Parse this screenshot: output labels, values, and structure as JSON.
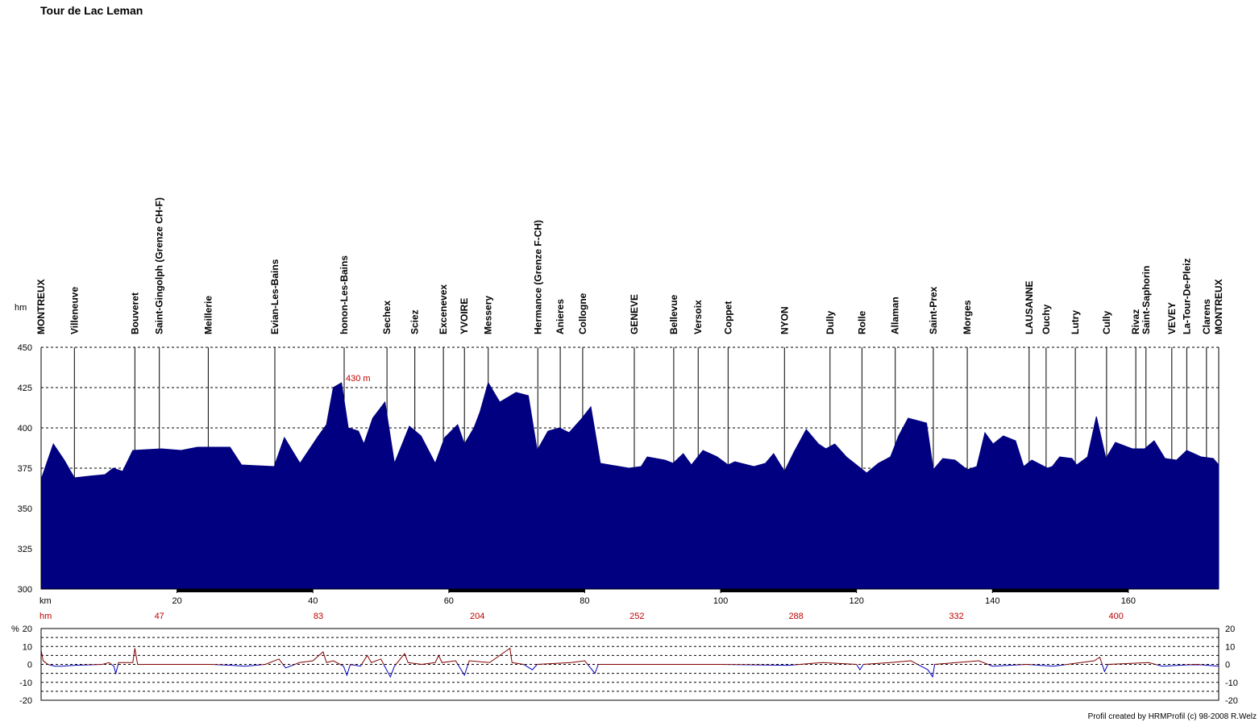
{
  "chart_data": [
    {
      "type": "area",
      "title": "Tour de Lac Leman",
      "ylabel": "hm",
      "xlabel": "km",
      "color": "#000080",
      "x": [
        0,
        1.8,
        3.4,
        4.9,
        7,
        9.4,
        10.6,
        12,
        13.5,
        17.7,
        20.6,
        23,
        27.8,
        29.5,
        34.3,
        35.8,
        38.1,
        40.8,
        42,
        43,
        44.2,
        45.2,
        46.7,
        47.5,
        48.8,
        50.6,
        52,
        54.2,
        55.9,
        58,
        59.4,
        61.3,
        62.3,
        63.7,
        64.6,
        65.8,
        67.5,
        69.9,
        71.7,
        73,
        74.6,
        76.3,
        77.7,
        79.4,
        80.9,
        82.3,
        86.5,
        88.3,
        89.2,
        91.8,
        93,
        94.5,
        95.7,
        97.4,
        99.5,
        101.1,
        102.1,
        104.9,
        106.6,
        107.8,
        109.4,
        110.8,
        112.6,
        114.4,
        115.5,
        116.8,
        118.5,
        120.3,
        121.5,
        123.2,
        125,
        126.2,
        127.6,
        130.3,
        131.3,
        132.7,
        134.5,
        136.3,
        137.7,
        138.9,
        140.1,
        141.6,
        143.4,
        144.6,
        145.8,
        148.1,
        148.8,
        149.9,
        151.7,
        152.4,
        154,
        155.3,
        156.7,
        158.1,
        160.6,
        162.4,
        163.8,
        165.4,
        167.1,
        168.6,
        170.7,
        172.5,
        173.3
      ],
      "values": [
        368,
        390,
        380,
        369,
        370,
        371,
        375,
        373,
        386,
        387,
        386,
        388,
        388,
        377,
        376,
        394,
        378,
        395,
        402,
        425,
        428,
        400,
        398,
        390,
        406,
        416,
        378,
        401,
        395,
        378,
        394,
        402,
        390,
        400,
        410,
        428,
        416,
        422,
        420,
        386,
        398,
        400,
        397,
        405,
        413,
        378,
        375,
        376,
        382,
        380,
        378,
        384,
        377,
        386,
        382,
        377,
        379,
        376,
        378,
        384,
        373,
        385,
        399,
        390,
        387,
        390,
        382,
        376,
        372,
        378,
        382,
        395,
        406,
        403,
        374,
        381,
        380,
        374,
        376,
        397,
        390,
        395,
        392,
        376,
        380,
        375,
        376,
        382,
        381,
        377,
        382,
        407,
        381,
        391,
        387,
        387,
        392,
        381,
        380,
        386,
        382,
        381,
        377
      ],
      "xlim": [
        0,
        173.3
      ],
      "ylim": [
        300,
        450
      ],
      "xticks": [
        20,
        40,
        60,
        80,
        100,
        120,
        140,
        160
      ],
      "yticks": [
        300,
        325,
        350,
        375,
        400,
        425,
        450
      ],
      "grid": true,
      "annotation": {
        "x": 44.6,
        "value": 430,
        "label": "430 m"
      },
      "climb_label": "hm",
      "climb_markers": [
        {
          "x": 17.4,
          "value": 47
        },
        {
          "x": 40.8,
          "value": 83
        },
        {
          "x": 64.2,
          "value": 204
        },
        {
          "x": 87.7,
          "value": 252
        },
        {
          "x": 111.1,
          "value": 288
        },
        {
          "x": 134.7,
          "value": 332
        },
        {
          "x": 158.2,
          "value": 400
        }
      ],
      "towns": [
        {
          "label": "MONTREUX",
          "km": 0
        },
        {
          "label": "Villeneuve",
          "km": 4.9
        },
        {
          "label": "Bouveret",
          "km": 13.8
        },
        {
          "label": "Saint-Gingolph (Grenze CH-F)",
          "km": 17.4
        },
        {
          "label": "Meillerie",
          "km": 24.6
        },
        {
          "label": "Evian-Les-Bains",
          "km": 34.4
        },
        {
          "label": "honon-Les-Bains",
          "km": 44.6
        },
        {
          "label": "Sechex",
          "km": 50.9
        },
        {
          "label": "Sciez",
          "km": 55.0
        },
        {
          "label": "Excenevex",
          "km": 59.2
        },
        {
          "label": "YVOIRE",
          "km": 62.3
        },
        {
          "label": "Messery",
          "km": 65.8
        },
        {
          "label": "Hermance (Grenze F-CH)",
          "km": 73.1
        },
        {
          "label": "Anieres",
          "km": 76.4
        },
        {
          "label": "Collogne",
          "km": 79.7
        },
        {
          "label": "GENEVE",
          "km": 87.3
        },
        {
          "label": "Bellevue",
          "km": 93.1
        },
        {
          "label": "Versoix",
          "km": 96.7
        },
        {
          "label": "Coppet",
          "km": 101.1
        },
        {
          "label": "NYON",
          "km": 109.4
        },
        {
          "label": "Dully",
          "km": 116.1
        },
        {
          "label": "Rolle",
          "km": 120.8
        },
        {
          "label": "Allaman",
          "km": 125.7
        },
        {
          "label": "Saint-Prex",
          "km": 131.3
        },
        {
          "label": "Morges",
          "km": 136.3
        },
        {
          "label": "LAUSANNE",
          "km": 145.4
        },
        {
          "label": "Ouchy",
          "km": 147.9
        },
        {
          "label": "Lutry",
          "km": 152.2
        },
        {
          "label": "Cully",
          "km": 156.8
        },
        {
          "label": "Rivaz",
          "km": 161.1
        },
        {
          "label": "Saint-Saphorin",
          "km": 162.6
        },
        {
          "label": "VEVEY",
          "km": 166.4
        },
        {
          "label": "La-Tour-De-Pleiz",
          "km": 168.6
        },
        {
          "label": "Clarens",
          "km": 171.5
        },
        {
          "label": "MONTREUX",
          "km": 173.3
        }
      ]
    },
    {
      "type": "line",
      "ylabel": "%",
      "positive_color": "#800000",
      "negative_color": "#0000c0",
      "x": [
        0,
        0.3,
        1,
        2,
        3,
        5,
        9,
        10,
        10.7,
        11,
        11.4,
        13.5,
        13.8,
        14.2,
        20,
        25,
        28,
        30,
        33,
        35,
        36,
        38,
        40,
        41.5,
        42,
        43,
        44.5,
        45,
        45.5,
        47,
        48,
        48.6,
        50,
        51.4,
        52,
        53.5,
        54,
        56,
        58,
        58.5,
        59,
        61,
        62.3,
        63,
        66,
        69,
        69.3,
        71,
        72.3,
        73,
        78,
        80,
        81.5,
        82,
        90,
        100,
        110,
        115,
        120,
        120.5,
        121,
        125,
        128,
        130.5,
        131.2,
        131.5,
        138,
        140,
        145,
        149,
        153,
        155,
        155.8,
        156.5,
        157,
        163,
        165,
        170,
        173.3
      ],
      "values": [
        8,
        2,
        0,
        -1,
        -1,
        -0.5,
        0,
        1,
        -1,
        -5,
        1,
        1,
        9,
        0,
        0,
        0,
        -0.5,
        -1,
        0,
        3,
        -2,
        1,
        2,
        7,
        1,
        2,
        -1,
        -6,
        0,
        -1,
        5,
        1,
        3,
        -7,
        -1,
        6,
        1,
        0,
        1,
        5,
        1,
        2,
        -6,
        2,
        1,
        9,
        1,
        0,
        -3,
        0,
        1,
        2,
        -5,
        0,
        0,
        0,
        -0.5,
        1,
        0,
        -3,
        0,
        1,
        2,
        -3,
        -7,
        0,
        2,
        -1,
        0,
        -1,
        1,
        2,
        4,
        -4,
        0,
        1,
        -1,
        0,
        -1
      ],
      "xlim": [
        0,
        173.3
      ],
      "ylim": [
        -20,
        20
      ],
      "yticks": [
        -20,
        -10,
        0,
        10,
        20
      ],
      "minor_yticks": [
        -15,
        -5,
        5,
        15
      ],
      "grid": true
    }
  ],
  "footer": "Profil created by HRMProfil (c) 98-2008 R.Welz"
}
